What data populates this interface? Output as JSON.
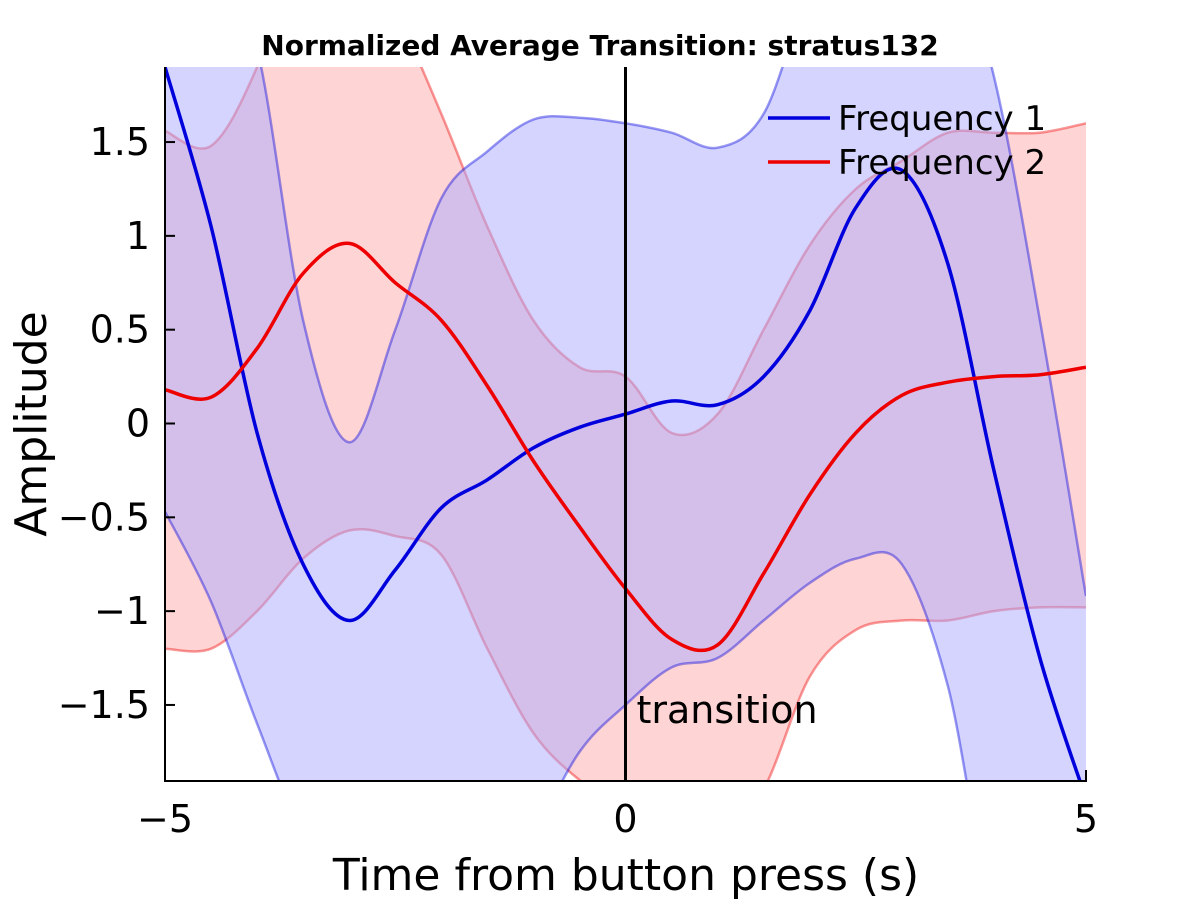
{
  "chart_data": {
    "type": "area",
    "title": "Normalized Average Transition: stratus132",
    "xlabel": "Time from button press (s)",
    "ylabel": "Amplitude",
    "xlim": [
      -5,
      5
    ],
    "ylim": [
      -1.9,
      1.9
    ],
    "xticks": [
      -5,
      0,
      5
    ],
    "xtick_labels": [
      "−5",
      "0",
      "5"
    ],
    "yticks": [
      -1.5,
      -1,
      -0.5,
      0,
      0.5,
      1,
      1.5
    ],
    "ytick_labels": [
      "−1.5",
      "−1",
      "−0.5",
      "0",
      "0.5",
      "1",
      "1.5"
    ],
    "grid": false,
    "legend_position": "top-right",
    "annotation": {
      "label": "transition",
      "x": 0
    },
    "series": [
      {
        "name": "Frequency 1",
        "color": "#0000dd",
        "band_color": "#aaaaff",
        "x": [
          -5,
          -4.5,
          -4,
          -3.5,
          -3,
          -2.5,
          -2,
          -1.5,
          -1,
          -0.5,
          0,
          0.5,
          1,
          1.5,
          2,
          2.5,
          3,
          3.5,
          4,
          4.5,
          5
        ],
        "y": [
          1.9,
          1.05,
          -0.05,
          -0.75,
          -1.05,
          -0.78,
          -0.45,
          -0.3,
          -0.13,
          -0.02,
          0.05,
          0.12,
          0.1,
          0.25,
          0.6,
          1.15,
          1.35,
          0.85,
          -0.25,
          -1.25,
          -2.0
        ],
        "upper": [
          2.6,
          2.6,
          2.0,
          0.55,
          -0.1,
          0.5,
          1.2,
          1.45,
          1.62,
          1.63,
          1.6,
          1.55,
          1.47,
          1.65,
          2.3,
          2.6,
          2.6,
          2.6,
          1.85,
          0.55,
          -0.92
        ],
        "lower": [
          -0.47,
          -0.95,
          -1.6,
          -2.2,
          -2.5,
          -2.6,
          -2.6,
          -2.6,
          -2.2,
          -1.75,
          -1.5,
          -1.3,
          -1.25,
          -1.05,
          -0.85,
          -0.72,
          -0.75,
          -1.4,
          -2.6,
          -2.6,
          -2.6
        ]
      },
      {
        "name": "Frequency 2",
        "color": "#ee0000",
        "band_color": "#ffaaaa",
        "x": [
          -5,
          -4.5,
          -4,
          -3.5,
          -3,
          -2.5,
          -2,
          -1.5,
          -1,
          -0.5,
          0,
          0.5,
          1,
          1.5,
          2,
          2.5,
          3,
          3.5,
          4,
          4.5,
          5
        ],
        "y": [
          0.18,
          0.14,
          0.4,
          0.8,
          0.96,
          0.75,
          0.55,
          0.2,
          -0.2,
          -0.55,
          -0.88,
          -1.15,
          -1.18,
          -0.8,
          -0.38,
          -0.05,
          0.15,
          0.22,
          0.25,
          0.26,
          0.3
        ],
        "upper": [
          1.56,
          1.48,
          1.9,
          2.6,
          2.6,
          2.2,
          1.65,
          1.05,
          0.55,
          0.3,
          0.25,
          -0.05,
          0.05,
          0.5,
          0.95,
          1.25,
          1.4,
          1.55,
          1.55,
          1.55,
          1.6
        ],
        "lower": [
          -1.2,
          -1.2,
          -1.0,
          -0.72,
          -0.57,
          -0.6,
          -0.7,
          -1.2,
          -1.65,
          -1.9,
          -2.05,
          -2.2,
          -2.25,
          -1.95,
          -1.35,
          -1.1,
          -1.05,
          -1.05,
          -1.0,
          -0.98,
          -0.98
        ]
      }
    ]
  }
}
